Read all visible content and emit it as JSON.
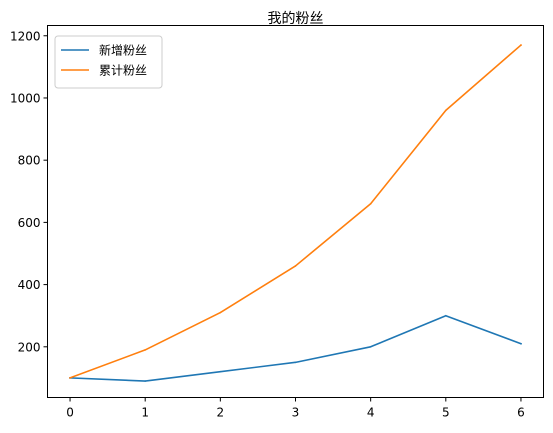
{
  "chart_data": {
    "type": "line",
    "title": "我的粉丝",
    "xlabel": "",
    "ylabel": "",
    "x": [
      0,
      1,
      2,
      3,
      4,
      5,
      6
    ],
    "xlim": [
      -0.3,
      6.3
    ],
    "ylim": [
      37,
      1233
    ],
    "xticks": [
      "0",
      "1",
      "2",
      "3",
      "4",
      "5",
      "6"
    ],
    "yticks": [
      200,
      400,
      600,
      800,
      1000,
      1200
    ],
    "grid": false,
    "legend_position": "upper-left",
    "series": [
      {
        "name": "新增粉丝",
        "color": "#1f77b4",
        "values": [
          100,
          90,
          120,
          150,
          200,
          300,
          210
        ]
      },
      {
        "name": "累计粉丝",
        "color": "#ff7f0e",
        "values": [
          100,
          190,
          310,
          460,
          660,
          960,
          1170
        ]
      }
    ]
  }
}
